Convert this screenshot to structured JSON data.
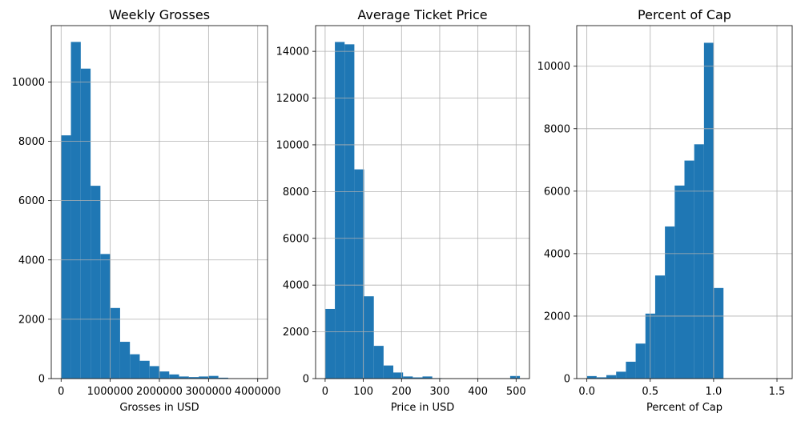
{
  "chart_data": [
    {
      "type": "bar",
      "title": "Weekly Grosses",
      "xlabel": "Grosses in USD",
      "ylabel": "",
      "grid": true,
      "color": "#1f77b4",
      "xlim": [
        -200000,
        4200000
      ],
      "ylim": [
        0,
        11900
      ],
      "xticks": [
        0,
        1000000,
        2000000,
        3000000,
        4000000
      ],
      "xtick_labels": [
        "0",
        "1000000",
        "2000000",
        "3000000",
        "4000000"
      ],
      "yticks": [
        0,
        2000,
        4000,
        6000,
        8000,
        10000
      ],
      "ytick_labels": [
        "0",
        "2000",
        "4000",
        "6000",
        "8000",
        "10000"
      ],
      "bin_start": 0,
      "bin_width": 200000,
      "values": [
        8200,
        11350,
        10450,
        6500,
        4200,
        2380,
        1240,
        820,
        600,
        420,
        240,
        140,
        70,
        50,
        70,
        90,
        30,
        10,
        5,
        5
      ]
    },
    {
      "type": "bar",
      "title": "Average Ticket Price",
      "xlabel": "Price in USD",
      "ylabel": "",
      "grid": true,
      "color": "#1f77b4",
      "xlim": [
        -25,
        535
      ],
      "ylim": [
        0,
        15100
      ],
      "xticks": [
        0,
        100,
        200,
        300,
        400,
        500
      ],
      "xtick_labels": [
        "0",
        "100",
        "200",
        "300",
        "400",
        "500"
      ],
      "yticks": [
        0,
        2000,
        4000,
        6000,
        8000,
        10000,
        12000,
        14000
      ],
      "ytick_labels": [
        "0",
        "2000",
        "4000",
        "6000",
        "8000",
        "10000",
        "12000",
        "14000"
      ],
      "bin_start": 0,
      "bin_width": 25.5,
      "values": [
        2980,
        14400,
        14300,
        8950,
        3520,
        1400,
        560,
        260,
        90,
        50,
        90,
        20,
        5,
        0,
        0,
        0,
        0,
        0,
        0,
        110
      ]
    },
    {
      "type": "bar",
      "title": "Percent of Cap",
      "xlabel": "Percent of Cap",
      "ylabel": "",
      "grid": true,
      "color": "#1f77b4",
      "xlim": [
        -0.08,
        1.62
      ],
      "ylim": [
        0,
        11300
      ],
      "xticks": [
        0.0,
        0.5,
        1.0,
        1.5
      ],
      "xtick_labels": [
        "0.0",
        "0.5",
        "1.0",
        "1.5"
      ],
      "yticks": [
        0,
        2000,
        4000,
        6000,
        8000,
        10000
      ],
      "ytick_labels": [
        "0",
        "2000",
        "4000",
        "6000",
        "8000",
        "10000"
      ],
      "bin_start": 0,
      "bin_width": 0.077,
      "values": [
        80,
        40,
        110,
        220,
        540,
        1120,
        2080,
        3300,
        4870,
        6180,
        6980,
        7500,
        10750,
        2900
      ]
    }
  ]
}
